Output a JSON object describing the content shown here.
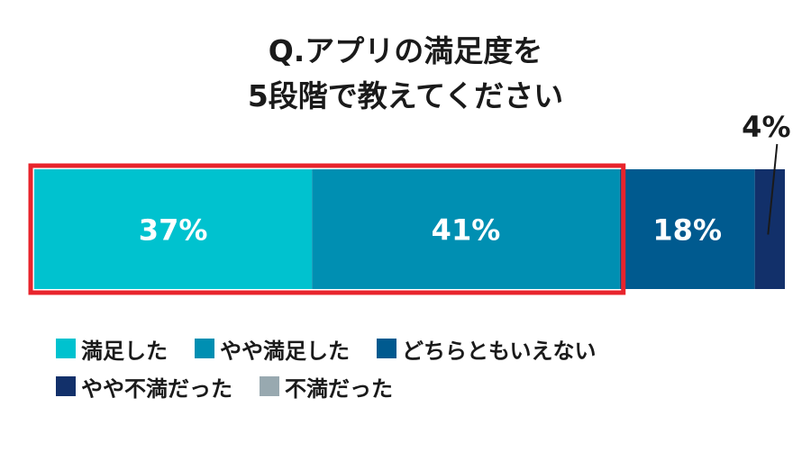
{
  "chart_data": {
    "type": "bar",
    "orientation": "horizontal-stacked",
    "title_lines": [
      "Q.アプリの満足度を",
      "5段階で教えてください"
    ],
    "categories": [
      "満足した",
      "やや満足した",
      "どちらともいえない",
      "やや不満だった",
      "不満だった"
    ],
    "values": [
      37,
      41,
      18,
      4,
      0
    ],
    "value_labels": [
      "37%",
      "41%",
      "18%",
      "4%",
      ""
    ],
    "colors": [
      "#00c2cf",
      "#008fb2",
      "#005a8f",
      "#12306a",
      "#98a9b0"
    ],
    "highlight": {
      "categories": [
        "満足した",
        "やや満足した"
      ],
      "color": "#e8242c"
    },
    "legend_position": "bottom",
    "grid": false
  }
}
